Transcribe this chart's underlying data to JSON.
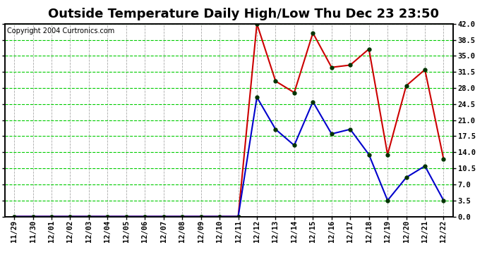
{
  "title": "Outside Temperature Daily High/Low Thu Dec 23 23:50",
  "copyright": "Copyright 2004 Curtronics.com",
  "background_color": "#ffffff",
  "plot_bg_color": "#ffffff",
  "grid_color": "#00cc00",
  "title_color": "#000000",
  "x_labels": [
    "11/29",
    "11/30",
    "12/01",
    "12/02",
    "12/03",
    "12/04",
    "12/05",
    "12/06",
    "12/07",
    "12/08",
    "12/09",
    "12/10",
    "12/11",
    "12/12",
    "12/13",
    "12/14",
    "12/15",
    "12/16",
    "12/17",
    "12/18",
    "12/19",
    "12/20",
    "12/21",
    "12/22"
  ],
  "high_temps": [
    0.0,
    0.0,
    0.0,
    0.0,
    0.0,
    0.0,
    0.0,
    0.0,
    0.0,
    0.0,
    0.0,
    0.0,
    0.0,
    42.0,
    29.5,
    27.0,
    40.0,
    32.5,
    33.0,
    36.5,
    13.5,
    28.5,
    32.0,
    12.5
  ],
  "low_temps": [
    0.0,
    0.0,
    0.0,
    0.0,
    0.0,
    0.0,
    0.0,
    0.0,
    0.0,
    0.0,
    0.0,
    0.0,
    0.0,
    26.0,
    19.0,
    15.5,
    25.0,
    18.0,
    19.0,
    13.5,
    3.5,
    8.5,
    11.0,
    3.5
  ],
  "high_color": "#cc0000",
  "low_color": "#0000cc",
  "marker_color": "#003300",
  "ylim": [
    0.0,
    42.0
  ],
  "yticks": [
    0.0,
    3.5,
    7.0,
    10.5,
    14.0,
    17.5,
    21.0,
    24.5,
    28.0,
    31.5,
    35.0,
    38.5,
    42.0
  ],
  "title_fontsize": 13,
  "axis_fontsize": 7.5,
  "copyright_fontsize": 7
}
